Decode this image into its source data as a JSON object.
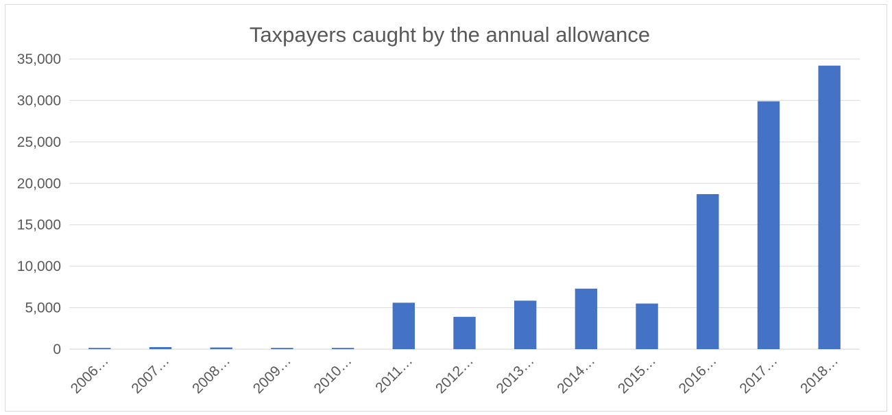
{
  "chart_data": {
    "type": "bar",
    "title": "Taxpayers caught by the annual allowance",
    "xlabel": "",
    "ylabel": "",
    "categories": [
      "2006…",
      "2007…",
      "2008…",
      "2009…",
      "2010…",
      "2011…",
      "2012…",
      "2013…",
      "2014…",
      "2015…",
      "2016…",
      "2017…",
      "2018…"
    ],
    "values": [
      150,
      250,
      200,
      150,
      150,
      5600,
      3900,
      5850,
      7300,
      5500,
      18700,
      29900,
      34200
    ],
    "ylim": [
      0,
      35000
    ],
    "yticks": [
      0,
      5000,
      10000,
      15000,
      20000,
      25000,
      30000,
      35000
    ],
    "ytick_labels": [
      "0",
      "5,000",
      "10,000",
      "15,000",
      "20,000",
      "25,000",
      "30,000",
      "35,000"
    ],
    "grid": true,
    "legend": "none",
    "colors": {
      "bar": "#4472c4",
      "grid": "#d9d9d9",
      "text": "#595959"
    }
  }
}
